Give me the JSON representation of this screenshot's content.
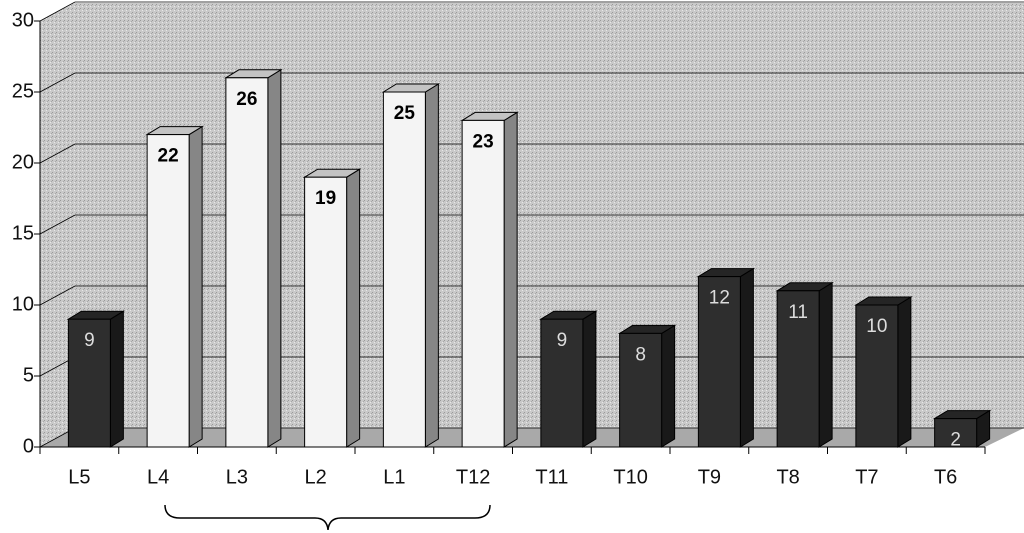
{
  "chart_data": {
    "type": "bar",
    "categories": [
      "L5",
      "L4",
      "L3",
      "L2",
      "L1",
      "T12",
      "T11",
      "T10",
      "T9",
      "T8",
      "T7",
      "T6"
    ],
    "values": [
      9,
      22,
      26,
      19,
      25,
      23,
      9,
      8,
      12,
      11,
      10,
      2
    ],
    "colors": [
      "#2e2e2e",
      "#f4f4f4",
      "#f4f4f4",
      "#f4f4f4",
      "#f4f4f4",
      "#f4f4f4",
      "#2e2e2e",
      "#2e2e2e",
      "#2e2e2e",
      "#2e2e2e",
      "#2e2e2e",
      "#2e2e2e"
    ],
    "ylim": [
      0,
      30
    ],
    "yticks": [
      0,
      5,
      10,
      15,
      20,
      25,
      30
    ],
    "grid": true
  }
}
